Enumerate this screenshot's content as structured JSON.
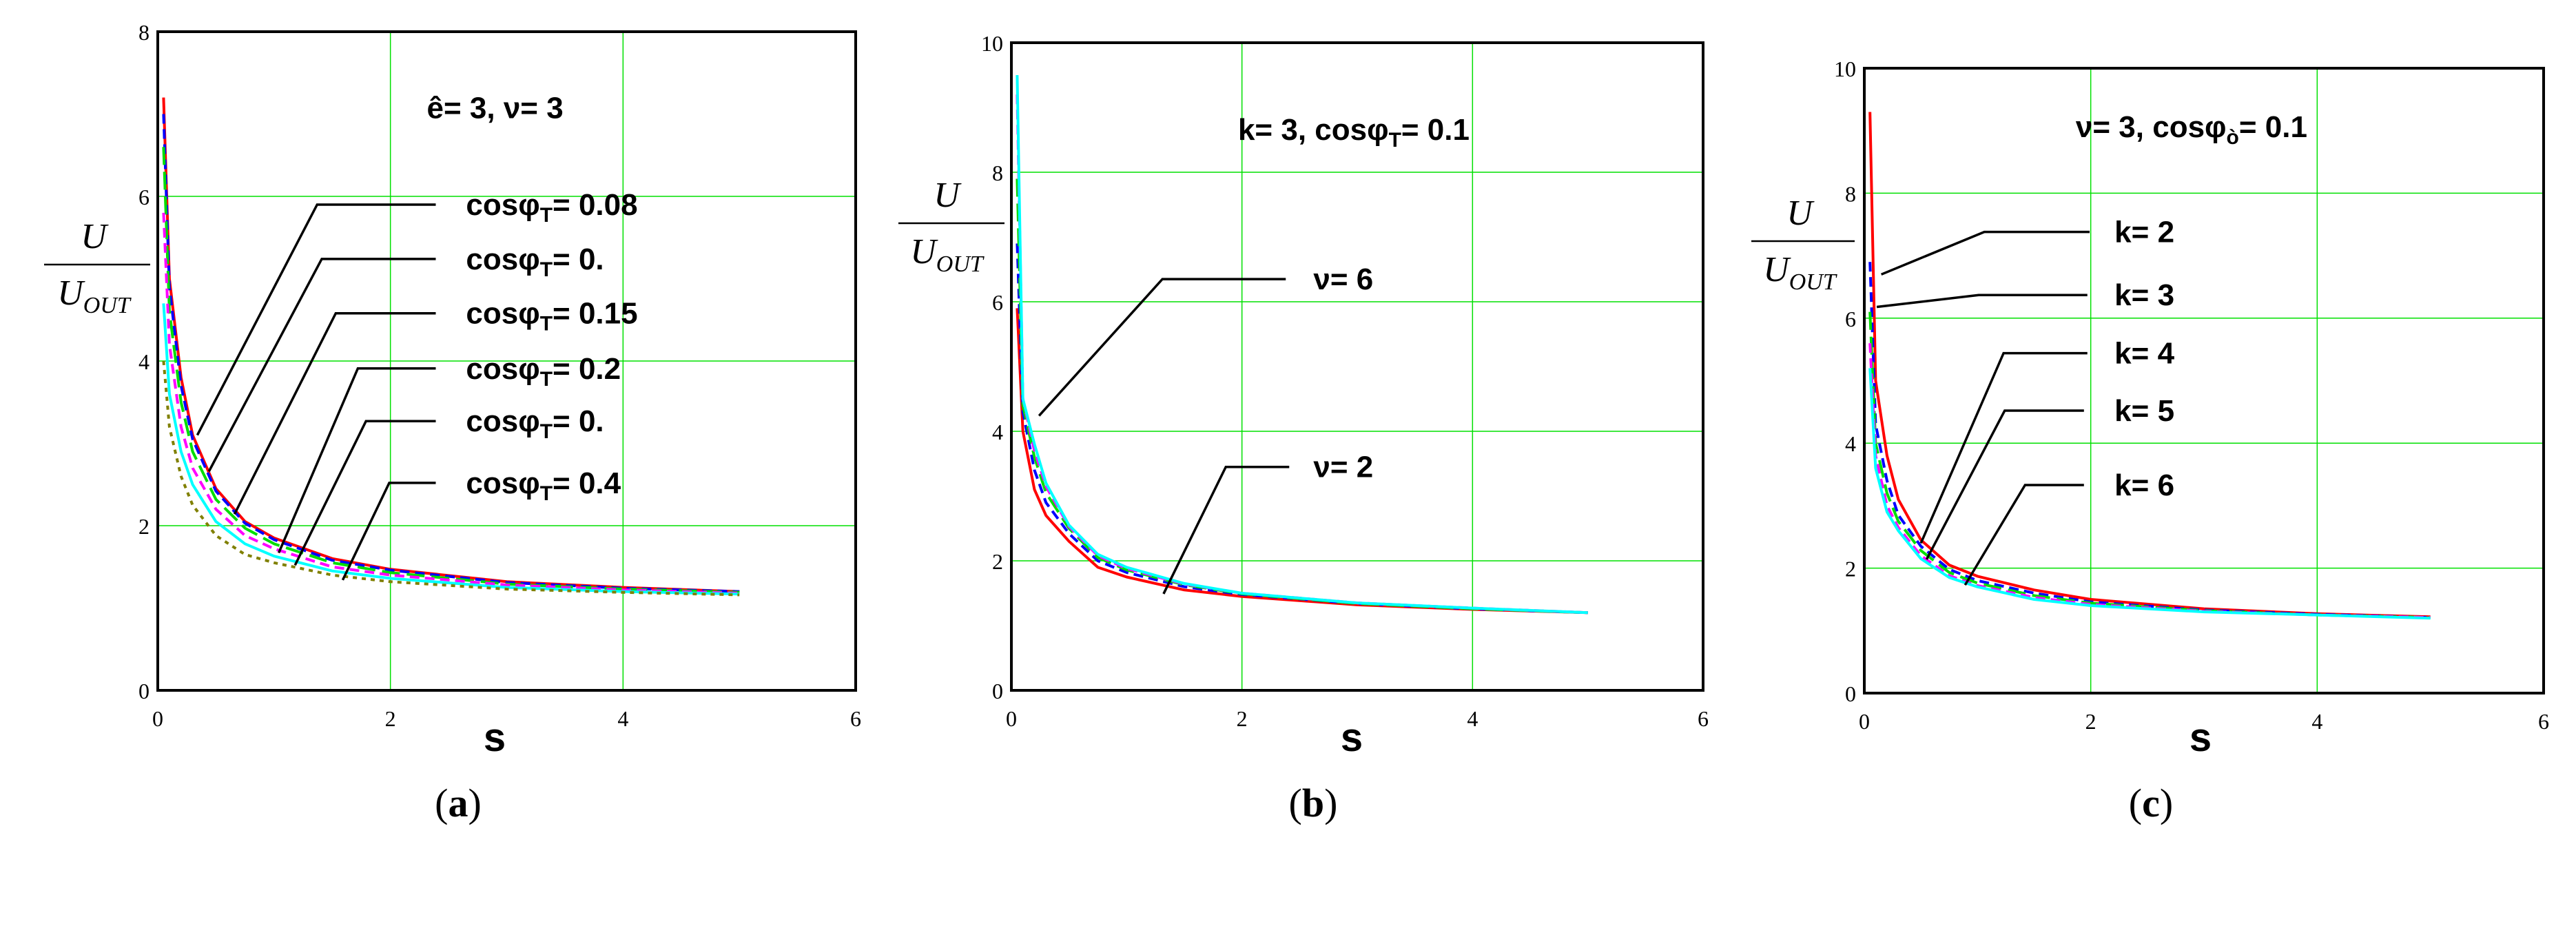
{
  "chart_data": [
    {
      "type": "line",
      "caption": "a",
      "title": {
        "text": "ê= 3, ν= 3"
      },
      "xlabel": "s",
      "ylabel": {
        "numerator": "U",
        "denominator": "U",
        "denominator_sub": "OUT"
      },
      "xlim": [
        0,
        6
      ],
      "ylim": [
        0,
        8
      ],
      "xticks": [
        "0",
        "2",
        "4",
        "6"
      ],
      "yticks": [
        "0",
        "2",
        "4",
        "6",
        "8"
      ],
      "grid": true,
      "x": [
        0.05,
        0.1,
        0.2,
        0.3,
        0.5,
        0.75,
        1,
        1.5,
        2,
        3,
        4,
        5
      ],
      "series": [
        {
          "color": "#ff0000",
          "style": "solid",
          "values": [
            7.2,
            5.0,
            3.8,
            3.1,
            2.45,
            2.05,
            1.85,
            1.6,
            1.47,
            1.32,
            1.25,
            1.2
          ]
        },
        {
          "color": "#0000ff",
          "style": "dashed",
          "values": [
            7.0,
            4.9,
            3.7,
            3.05,
            2.42,
            2.03,
            1.83,
            1.58,
            1.46,
            1.31,
            1.24,
            1.2
          ]
        },
        {
          "color": "#00dd00",
          "style": "long-dash",
          "values": [
            6.6,
            4.6,
            3.5,
            2.9,
            2.32,
            1.97,
            1.78,
            1.55,
            1.43,
            1.29,
            1.23,
            1.19
          ]
        },
        {
          "color": "#ff00ff",
          "style": "dashed",
          "values": [
            5.8,
            4.2,
            3.2,
            2.7,
            2.2,
            1.88,
            1.72,
            1.5,
            1.4,
            1.28,
            1.22,
            1.18
          ]
        },
        {
          "color": "#00ffff",
          "style": "solid",
          "values": [
            4.7,
            3.6,
            2.9,
            2.5,
            2.05,
            1.78,
            1.63,
            1.45,
            1.36,
            1.25,
            1.2,
            1.17
          ]
        },
        {
          "color": "#808000",
          "style": "dotted",
          "values": [
            4.0,
            3.2,
            2.6,
            2.25,
            1.88,
            1.65,
            1.55,
            1.4,
            1.32,
            1.23,
            1.19,
            1.16
          ]
        }
      ],
      "annotations": [
        {
          "text": "cosφ",
          "sub": "T",
          "rest": "= 0.08"
        },
        {
          "text": "cosφ",
          "sub": "T",
          "rest": "= 0."
        },
        {
          "text": "cosφ",
          "sub": "T",
          "rest": "= 0.15"
        },
        {
          "text": "cosφ",
          "sub": "T",
          "rest": "= 0.2"
        },
        {
          "text": "cosφ",
          "sub": "T",
          "rest": "= 0."
        },
        {
          "text": "cosφ",
          "sub": "T",
          "rest": "= 0.4"
        }
      ]
    },
    {
      "type": "line",
      "caption": "b",
      "title": {
        "text": "k= 3, cosφ",
        "sub": "T",
        "rest": "= 0.1"
      },
      "xlabel": "s",
      "ylabel": {
        "numerator": "U",
        "denominator": "U",
        "denominator_sub": "OUT"
      },
      "xlim": [
        0,
        6
      ],
      "ylim": [
        0,
        10
      ],
      "xticks": [
        "0",
        "2",
        "4",
        "6"
      ],
      "yticks": [
        "0",
        "2",
        "4",
        "6",
        "8",
        "10"
      ],
      "grid": true,
      "x": [
        0.05,
        0.1,
        0.2,
        0.3,
        0.5,
        0.75,
        1,
        1.5,
        2,
        3,
        4,
        5
      ],
      "series": [
        {
          "color": "#ff0000",
          "style": "solid",
          "values": [
            5.9,
            4.0,
            3.1,
            2.7,
            2.3,
            1.9,
            1.75,
            1.55,
            1.45,
            1.32,
            1.25,
            1.2
          ]
        },
        {
          "color": "#0000ff",
          "style": "dashed",
          "values": [
            6.9,
            4.3,
            3.4,
            2.9,
            2.42,
            2.0,
            1.82,
            1.6,
            1.48,
            1.34,
            1.26,
            1.2
          ]
        },
        {
          "color": "#00dd00",
          "style": "long-dash",
          "values": [
            7.9,
            4.4,
            3.6,
            3.05,
            2.5,
            2.05,
            1.86,
            1.63,
            1.49,
            1.34,
            1.26,
            1.2
          ]
        },
        {
          "color": "#ff00ff",
          "style": "dashed",
          "values": [
            9.2,
            4.5,
            3.7,
            3.15,
            2.53,
            2.08,
            1.88,
            1.64,
            1.5,
            1.35,
            1.27,
            1.2
          ]
        },
        {
          "color": "#00ffff",
          "style": "solid",
          "values": [
            9.5,
            4.5,
            3.8,
            3.2,
            2.55,
            2.1,
            1.9,
            1.65,
            1.5,
            1.35,
            1.27,
            1.2
          ]
        }
      ],
      "annotations": [
        {
          "text": "ν= 6"
        },
        {
          "text": "ν= 2"
        }
      ]
    },
    {
      "type": "line",
      "caption": "c",
      "title": {
        "text": "ν= 3, cosφ",
        "sub": "ò",
        "rest": "= 0.1"
      },
      "xlabel": "s",
      "ylabel": {
        "numerator": "U",
        "denominator": "U",
        "denominator_sub": "OUT"
      },
      "xlim": [
        0,
        6
      ],
      "ylim": [
        0,
        10
      ],
      "xticks": [
        "0",
        "2",
        "4",
        "6"
      ],
      "yticks": [
        "0",
        "2",
        "4",
        "6",
        "8",
        "10"
      ],
      "grid": true,
      "x": [
        0.05,
        0.1,
        0.2,
        0.3,
        0.5,
        0.75,
        1,
        1.5,
        2,
        3,
        4,
        5
      ],
      "series": [
        {
          "color": "#ff0000",
          "style": "solid",
          "values": [
            9.3,
            5.0,
            3.8,
            3.1,
            2.45,
            2.05,
            1.87,
            1.65,
            1.5,
            1.35,
            1.27,
            1.22
          ]
        },
        {
          "color": "#0000ff",
          "style": "dashed",
          "values": [
            6.9,
            4.3,
            3.4,
            2.85,
            2.35,
            1.98,
            1.8,
            1.6,
            1.46,
            1.33,
            1.26,
            1.21
          ]
        },
        {
          "color": "#00dd00",
          "style": "long-dash",
          "values": [
            6.1,
            4.0,
            3.2,
            2.75,
            2.28,
            1.93,
            1.76,
            1.56,
            1.44,
            1.32,
            1.25,
            1.21
          ]
        },
        {
          "color": "#ff00ff",
          "style": "dashed",
          "values": [
            5.6,
            3.8,
            3.0,
            2.65,
            2.2,
            1.88,
            1.72,
            1.53,
            1.42,
            1.31,
            1.25,
            1.21
          ]
        },
        {
          "color": "#00ffff",
          "style": "solid",
          "values": [
            5.2,
            3.6,
            2.9,
            2.6,
            2.15,
            1.85,
            1.7,
            1.5,
            1.4,
            1.3,
            1.25,
            1.2
          ]
        }
      ],
      "annotations": [
        {
          "text": "k= 2"
        },
        {
          "text": "k= 3"
        },
        {
          "text": "k= 4"
        },
        {
          "text": "k= 5"
        },
        {
          "text": "k= 6"
        }
      ]
    }
  ]
}
